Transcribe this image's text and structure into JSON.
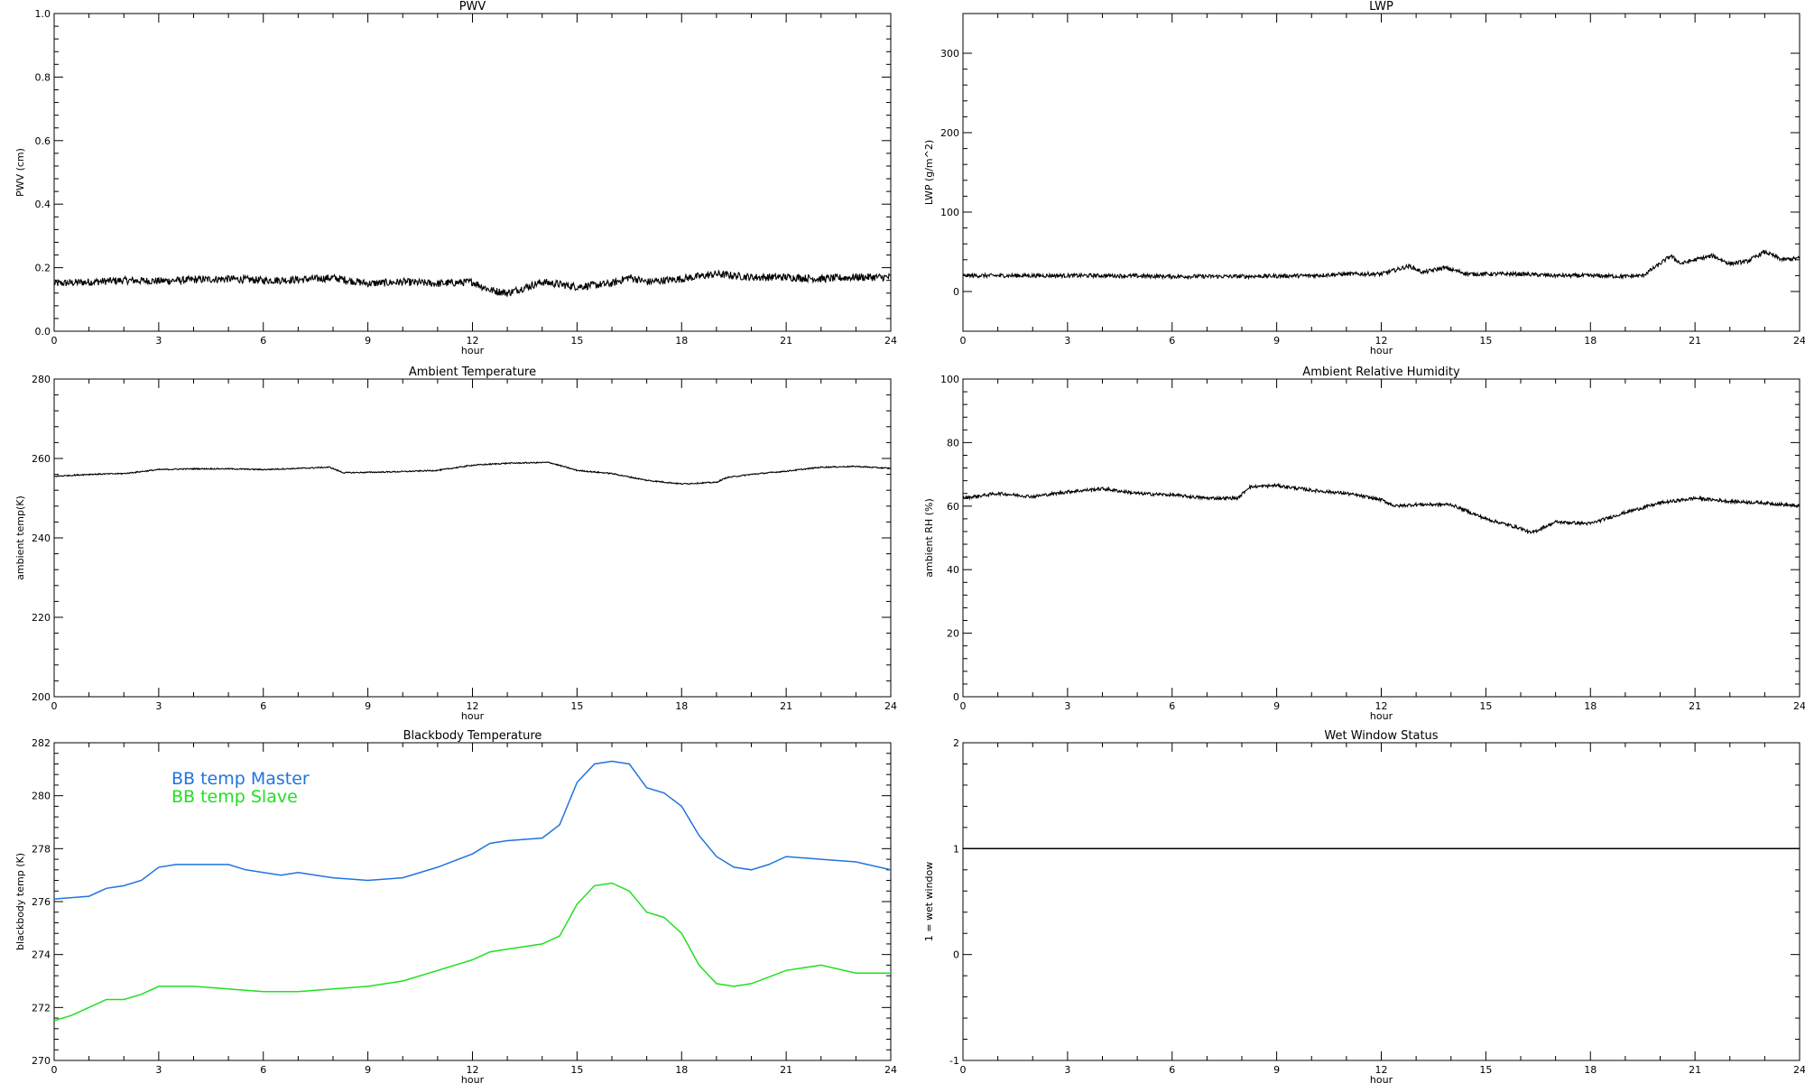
{
  "chart_data": [
    {
      "id": "pwv",
      "type": "line",
      "title": "PWV",
      "xlabel": "hour",
      "ylabel": "PWV (cm)",
      "xlim": [
        0,
        24
      ],
      "ylim": [
        0.0,
        1.0
      ],
      "xticks": [
        "0",
        "3",
        "6",
        "9",
        "12",
        "15",
        "18",
        "21",
        "24"
      ],
      "yticks": [
        "0.0",
        "0.2",
        "0.4",
        "0.6",
        "0.8",
        "1.0"
      ],
      "noise": 0.012,
      "series": [
        {
          "color": "#000000",
          "x": [
            0,
            1,
            2,
            3,
            4,
            5,
            6,
            7,
            8,
            9,
            10,
            11,
            12,
            12.5,
            13,
            14,
            15,
            16,
            16.5,
            17,
            18,
            19,
            20,
            21,
            22,
            23,
            24
          ],
          "y": [
            0.15,
            0.155,
            0.16,
            0.158,
            0.162,
            0.165,
            0.16,
            0.162,
            0.168,
            0.15,
            0.155,
            0.15,
            0.155,
            0.13,
            0.12,
            0.155,
            0.14,
            0.15,
            0.17,
            0.155,
            0.165,
            0.18,
            0.17,
            0.17,
            0.165,
            0.17,
            0.17
          ]
        }
      ]
    },
    {
      "id": "lwp",
      "type": "line",
      "title": "LWP",
      "xlabel": "hour",
      "ylabel": "LWP (g/m^2)",
      "xlim": [
        0,
        24
      ],
      "ylim": [
        -50,
        350
      ],
      "xticks": [
        "0",
        "3",
        "6",
        "9",
        "12",
        "15",
        "18",
        "21",
        "24"
      ],
      "yticks": [
        "0",
        "100",
        "200",
        "300"
      ],
      "noise": 2.5,
      "series": [
        {
          "color": "#000000",
          "x": [
            0,
            2,
            4,
            6,
            8,
            10,
            11,
            12,
            12.8,
            13.2,
            13.8,
            14.5,
            16,
            17,
            18,
            19,
            19.5,
            20,
            20.3,
            20.6,
            21,
            21.5,
            22,
            22.5,
            23,
            23.5,
            24
          ],
          "y": [
            20,
            20,
            20,
            19,
            19,
            20,
            22,
            22,
            32,
            24,
            30,
            22,
            22,
            20,
            20,
            19,
            20,
            35,
            45,
            35,
            40,
            45,
            35,
            38,
            50,
            40,
            42
          ]
        }
      ]
    },
    {
      "id": "ambient-temp",
      "type": "line",
      "title": "Ambient Temperature",
      "xlabel": "hour",
      "ylabel": "ambient temp(K)",
      "xlim": [
        0,
        24
      ],
      "ylim": [
        200,
        280
      ],
      "xticks": [
        "0",
        "3",
        "6",
        "9",
        "12",
        "15",
        "18",
        "21",
        "24"
      ],
      "yticks": [
        "200",
        "220",
        "240",
        "260",
        "280"
      ],
      "noise": 0.15,
      "series": [
        {
          "color": "#000000",
          "x": [
            0,
            1,
            2,
            3,
            4,
            5,
            6,
            7,
            7.9,
            8.3,
            9,
            10,
            11,
            12,
            13,
            14.2,
            15,
            16,
            17,
            18,
            19,
            19.3,
            20,
            21,
            22,
            23,
            24
          ],
          "y": [
            255.5,
            256,
            256.2,
            257.2,
            257.4,
            257.4,
            257.2,
            257.5,
            257.8,
            256.4,
            256.5,
            256.7,
            257,
            258.3,
            258.8,
            259,
            257,
            256.2,
            254.5,
            253.6,
            254,
            255.2,
            256,
            256.8,
            257.8,
            258,
            257.5
          ]
        }
      ]
    },
    {
      "id": "ambient-rh",
      "type": "line",
      "title": "Ambient Relative Humidity",
      "xlabel": "hour",
      "ylabel": "ambient RH (%)",
      "xlim": [
        0,
        24
      ],
      "ylim": [
        0,
        100
      ],
      "xticks": [
        "0",
        "3",
        "6",
        "9",
        "12",
        "15",
        "18",
        "21",
        "24"
      ],
      "yticks": [
        "0",
        "20",
        "40",
        "60",
        "80",
        "100"
      ],
      "noise": 0.5,
      "series": [
        {
          "color": "#000000",
          "x": [
            0,
            1,
            2,
            3,
            4,
            5,
            6,
            7,
            7.9,
            8.2,
            9,
            10,
            11,
            12,
            12.4,
            13,
            14,
            15,
            16,
            16.3,
            17,
            18,
            19,
            20,
            21,
            22,
            23,
            24
          ],
          "y": [
            62.5,
            64,
            63,
            64.5,
            65.5,
            64,
            63.5,
            62.5,
            62.5,
            66,
            66.5,
            65,
            64,
            62,
            60,
            60.5,
            60.5,
            56,
            53,
            51.5,
            55,
            54.5,
            58,
            61,
            62.5,
            61.5,
            61,
            60
          ]
        }
      ]
    },
    {
      "id": "blackbody-temp",
      "type": "line",
      "title": "Blackbody Temperature",
      "xlabel": "hour",
      "ylabel": "blackbody temp (K)",
      "xlim": [
        0,
        24
      ],
      "ylim": [
        270,
        282
      ],
      "xticks": [
        "0",
        "3",
        "6",
        "9",
        "12",
        "15",
        "18",
        "21",
        "24"
      ],
      "yticks": [
        "270",
        "272",
        "274",
        "276",
        "278",
        "280",
        "282"
      ],
      "legend": "top-left",
      "noise": 0,
      "series": [
        {
          "name": "BB temp Master",
          "color": "#1f74e0",
          "x": [
            0,
            1,
            1.5,
            2,
            2.5,
            3,
            3.5,
            4,
            5,
            5.5,
            6,
            6.5,
            7,
            7.5,
            8,
            9,
            10,
            11,
            12,
            12.5,
            13,
            14,
            14.5,
            15,
            15.5,
            16,
            16.5,
            17,
            17.5,
            18,
            18.5,
            19,
            19.5,
            20,
            20.5,
            21,
            22,
            23,
            24
          ],
          "y": [
            276.1,
            276.2,
            276.5,
            276.6,
            276.8,
            277.3,
            277.4,
            277.4,
            277.4,
            277.2,
            277.1,
            277.0,
            277.1,
            277.0,
            276.9,
            276.8,
            276.9,
            277.3,
            277.8,
            278.2,
            278.3,
            278.4,
            278.9,
            280.5,
            281.2,
            281.3,
            281.2,
            280.3,
            280.1,
            279.6,
            278.5,
            277.7,
            277.3,
            277.2,
            277.4,
            277.7,
            277.6,
            277.5,
            277.2
          ]
        },
        {
          "name": "BB temp Slave",
          "color": "#1fe01f",
          "x": [
            0,
            0.5,
            1,
            1.5,
            2,
            2.5,
            3,
            3.5,
            4,
            5,
            6,
            7,
            8,
            9,
            10,
            11,
            12,
            12.5,
            13,
            14,
            14.5,
            15,
            15.5,
            16,
            16.5,
            17,
            17.5,
            18,
            18.5,
            19,
            19.5,
            20,
            21,
            22,
            23,
            24
          ],
          "y": [
            271.5,
            271.7,
            272.0,
            272.3,
            272.3,
            272.5,
            272.8,
            272.8,
            272.8,
            272.7,
            272.6,
            272.6,
            272.7,
            272.8,
            273.0,
            273.4,
            273.8,
            274.1,
            274.2,
            274.4,
            274.7,
            275.9,
            276.6,
            276.7,
            276.4,
            275.6,
            275.4,
            274.8,
            273.6,
            272.9,
            272.8,
            272.9,
            273.4,
            273.6,
            273.3,
            273.3
          ]
        }
      ]
    },
    {
      "id": "wet-window",
      "type": "line",
      "title": "Wet Window Status",
      "xlabel": "hour",
      "ylabel": "1 = wet window",
      "xlim": [
        0,
        24
      ],
      "ylim": [
        -1,
        2
      ],
      "xticks": [
        "0",
        "3",
        "6",
        "9",
        "12",
        "15",
        "18",
        "21",
        "24"
      ],
      "yticks": [
        "-1",
        "0",
        "1",
        "2"
      ],
      "noise": 0,
      "series": [
        {
          "color": "#000000",
          "x": [
            0,
            24
          ],
          "y": [
            1,
            1
          ]
        }
      ]
    }
  ]
}
